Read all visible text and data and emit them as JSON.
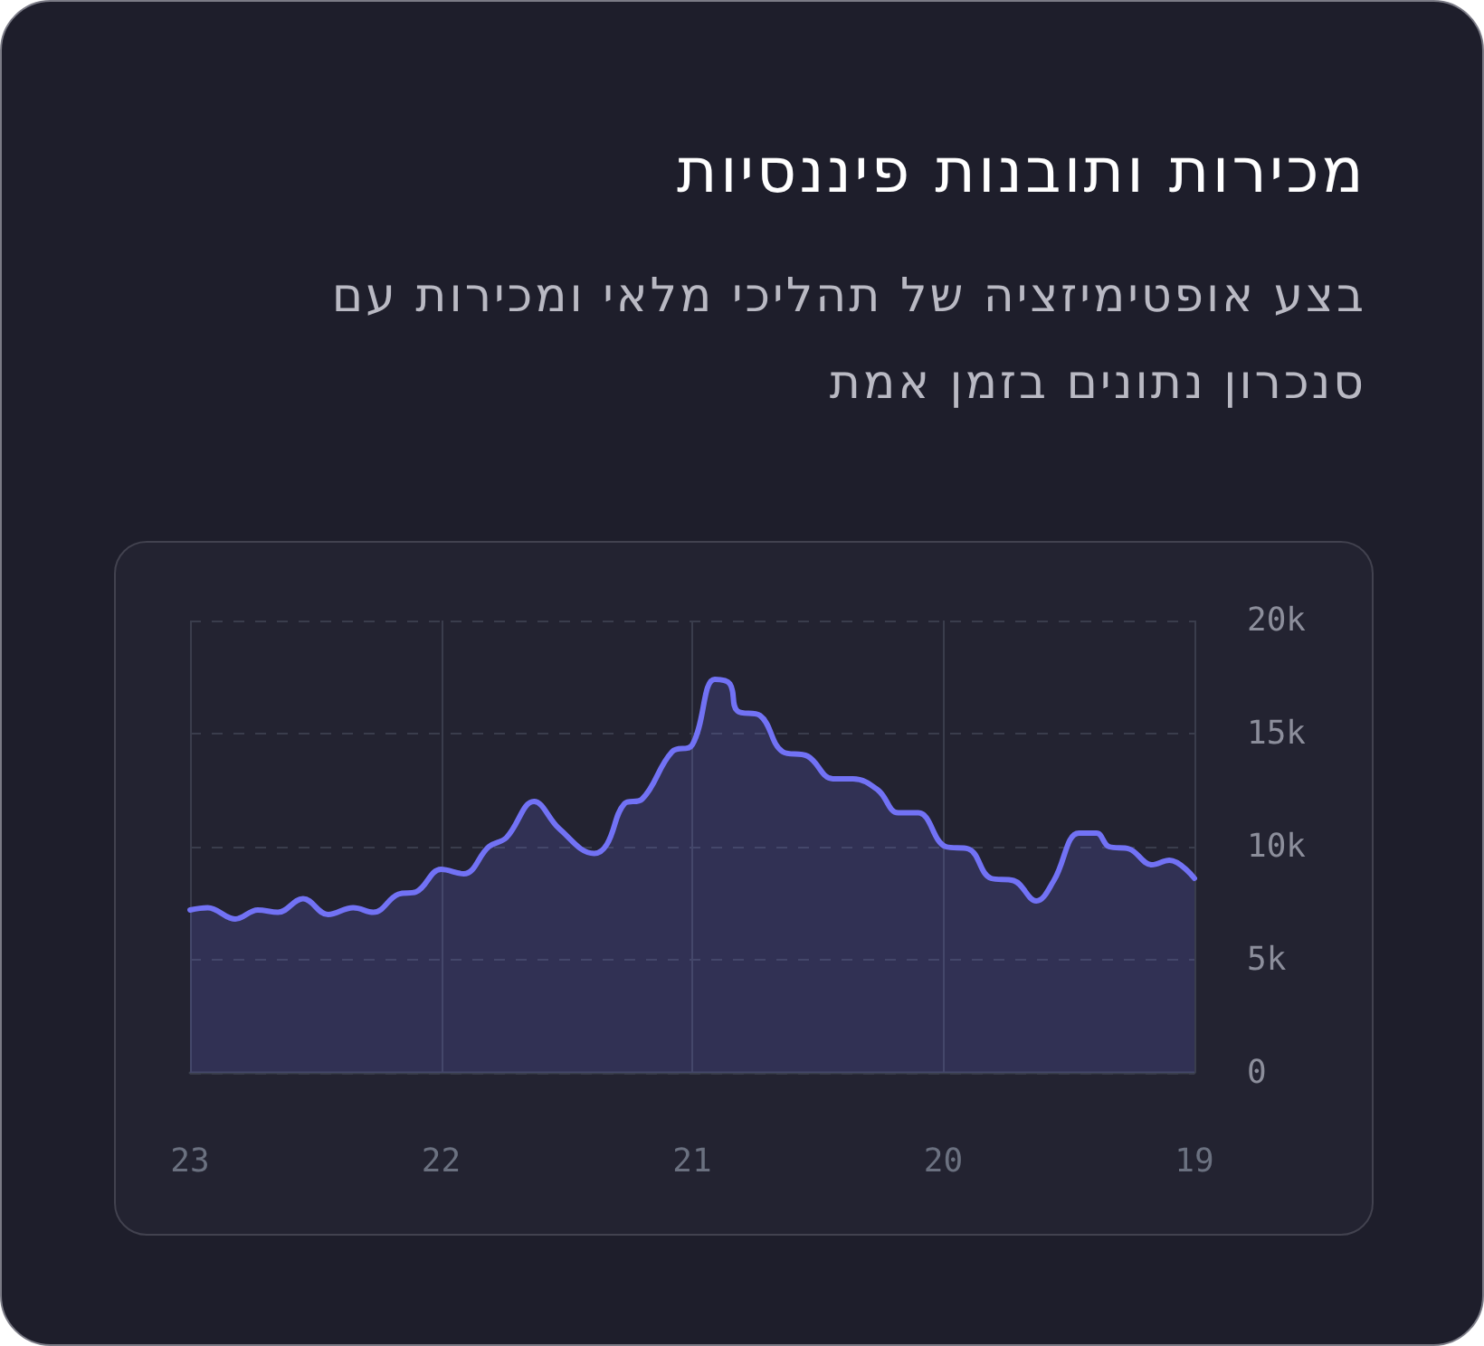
{
  "chart_data": {
    "type": "area",
    "title": "מכירות ותובנות פיננסיות",
    "subtitle": "בצע אופטימיזציה של תהליכי מלאי ומכירות עם סנכרון נתונים בזמן אמת",
    "x": [
      23,
      22.93,
      22.82,
      22.73,
      22.65,
      22.55,
      22.45,
      22.35,
      22.27,
      22.17,
      22.1,
      22,
      21.91,
      21.81,
      21.74,
      21.63,
      21.53,
      21.39,
      21.34,
      21.27,
      21.2,
      21.08,
      21,
      20.91,
      20.85,
      20.82,
      20.73,
      20.64,
      20.54,
      20.44,
      20.36,
      20.26,
      20.18,
      20.1,
      19.99,
      19.9,
      19.81,
      19.72,
      19.63,
      19.56,
      19.46,
      19.39,
      19.34,
      19.26,
      19.17,
      19.1,
      19
    ],
    "values": [
      7200,
      7300,
      6800,
      7200,
      7100,
      7700,
      7000,
      7300,
      7100,
      7900,
      8000,
      9000,
      8800,
      10000,
      10400,
      12000,
      10800,
      9700,
      10100,
      11900,
      12100,
      14200,
      14500,
      17400,
      17200,
      16000,
      15800,
      14200,
      14000,
      13000,
      13000,
      12500,
      11500,
      11500,
      10000,
      9900,
      8600,
      8500,
      7600,
      8500,
      10600,
      10600,
      10000,
      9900,
      9200,
      9400,
      8600
    ],
    "color": "#7272f5",
    "xlim": [
      23,
      19
    ],
    "xticks": [
      23,
      22,
      21,
      20,
      19
    ],
    "ylim": [
      0,
      20000
    ],
    "yticks": [
      0,
      {
        "value": 5000,
        "label": "5k"
      },
      {
        "value": 10000,
        "label": "10k"
      },
      {
        "value": 15000,
        "label": "15k"
      },
      {
        "value": 20000,
        "label": "20k"
      }
    ],
    "grid": true
  }
}
